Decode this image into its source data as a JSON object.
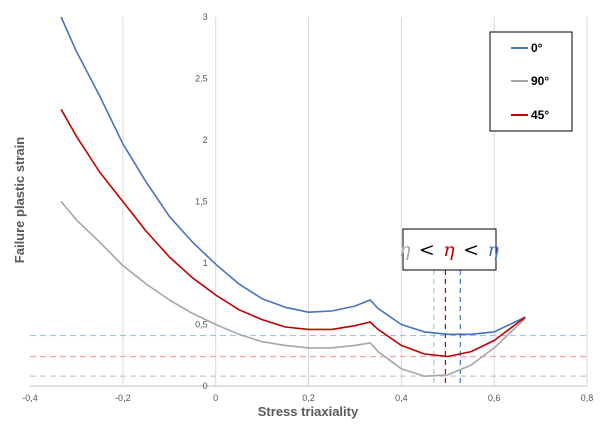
{
  "chart_data": {
    "type": "line",
    "title": "",
    "xlabel": "Stress triaxiality",
    "ylabel": "Failure plastic strain",
    "xlim": [
      -0.4,
      0.8
    ],
    "ylim": [
      0,
      3
    ],
    "x_ticks": [
      -0.4,
      -0.2,
      0,
      0.2,
      0.4,
      0.6,
      0.8
    ],
    "x_tick_labels": [
      "-0,4",
      "-0,2",
      "0",
      "0,2",
      "0,4",
      "0,6",
      "0,8"
    ],
    "y_ticks": [
      0,
      0.5,
      1,
      1.5,
      2,
      2.5,
      3
    ],
    "y_tick_labels": [
      "0",
      "0,5",
      "1",
      "1,5",
      "2",
      "2,5",
      "3"
    ],
    "grid": "vertical",
    "legend_position": "top-right",
    "series": [
      {
        "name": "0°",
        "color": "#4472c4",
        "x": [
          -0.333,
          -0.3,
          -0.25,
          -0.2,
          -0.15,
          -0.1,
          -0.05,
          0,
          0.05,
          0.1,
          0.15,
          0.2,
          0.25,
          0.3,
          0.333,
          0.35,
          0.4,
          0.45,
          0.5,
          0.55,
          0.6,
          0.667
        ],
        "y": [
          3.0,
          2.72,
          2.36,
          1.97,
          1.66,
          1.38,
          1.17,
          0.99,
          0.83,
          0.71,
          0.64,
          0.6,
          0.61,
          0.65,
          0.7,
          0.63,
          0.5,
          0.44,
          0.42,
          0.42,
          0.44,
          0.56
        ]
      },
      {
        "name": "90°",
        "color": "#a6a6a6",
        "x": [
          -0.333,
          -0.3,
          -0.25,
          -0.2,
          -0.15,
          -0.1,
          -0.05,
          0,
          0.05,
          0.1,
          0.15,
          0.2,
          0.25,
          0.3,
          0.333,
          0.35,
          0.4,
          0.45,
          0.5,
          0.55,
          0.6,
          0.667
        ],
        "y": [
          1.5,
          1.35,
          1.17,
          0.98,
          0.83,
          0.7,
          0.59,
          0.5,
          0.42,
          0.36,
          0.33,
          0.31,
          0.31,
          0.33,
          0.35,
          0.28,
          0.14,
          0.08,
          0.09,
          0.17,
          0.31,
          0.55
        ]
      },
      {
        "name": "45°",
        "color": "#c00000",
        "x": [
          -0.333,
          -0.3,
          -0.25,
          -0.2,
          -0.15,
          -0.1,
          -0.05,
          0,
          0.05,
          0.1,
          0.15,
          0.2,
          0.25,
          0.3,
          0.333,
          0.35,
          0.4,
          0.45,
          0.5,
          0.55,
          0.6,
          0.667
        ],
        "y": [
          2.25,
          2.03,
          1.74,
          1.5,
          1.26,
          1.05,
          0.88,
          0.74,
          0.62,
          0.54,
          0.48,
          0.46,
          0.46,
          0.49,
          0.52,
          0.46,
          0.33,
          0.26,
          0.24,
          0.28,
          0.37,
          0.56
        ]
      }
    ],
    "reference_lines": [
      {
        "orientation": "horizontal",
        "y": 0.41,
        "color": "#9dc3e6"
      },
      {
        "orientation": "horizontal",
        "y": 0.24,
        "color": "#f4a6a6"
      },
      {
        "orientation": "horizontal",
        "y": 0.08,
        "color": "#c9c9c9"
      },
      {
        "orientation": "vertical",
        "x": 0.47,
        "color": "#bfbfbf"
      },
      {
        "orientation": "vertical",
        "x": 0.495,
        "color": "#c00000"
      },
      {
        "orientation": "vertical",
        "x": 0.527,
        "color": "#4472c4"
      }
    ],
    "annotation": {
      "eta_symbols": [
        "η",
        "η",
        "η"
      ],
      "eta_colors": [
        "#a6a6a6",
        "#c00000",
        "#4472c4"
      ],
      "separators": [
        "<",
        "<"
      ]
    }
  }
}
